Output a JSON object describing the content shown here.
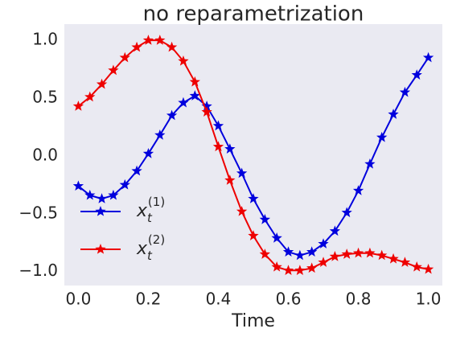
{
  "chart_data": {
    "type": "line",
    "title": "no reparametrization",
    "x_label": "Time",
    "x": [
      0,
      0.033,
      0.067,
      0.1,
      0.133,
      0.167,
      0.2,
      0.233,
      0.267,
      0.3,
      0.333,
      0.367,
      0.4,
      0.433,
      0.467,
      0.5,
      0.533,
      0.567,
      0.6,
      0.633,
      0.667,
      0.7,
      0.733,
      0.767,
      0.8,
      0.833,
      0.867,
      0.9,
      0.933,
      0.967,
      1.0
    ],
    "series": [
      {
        "name": "x",
        "subscript": "t",
        "superscript": "(1)",
        "color": "#0000dd",
        "values": [
          -0.26,
          -0.34,
          -0.37,
          -0.34,
          -0.25,
          -0.13,
          0.02,
          0.18,
          0.35,
          0.46,
          0.52,
          0.43,
          0.26,
          0.06,
          -0.15,
          -0.37,
          -0.55,
          -0.71,
          -0.83,
          -0.86,
          -0.83,
          -0.76,
          -0.65,
          -0.49,
          -0.3,
          -0.07,
          0.16,
          0.36,
          0.55,
          0.7,
          0.85
        ]
      },
      {
        "name": "x",
        "subscript": "t",
        "superscript": "(2)",
        "color": "#ee0000",
        "values": [
          0.43,
          0.51,
          0.62,
          0.74,
          0.85,
          0.94,
          1.0,
          1.0,
          0.94,
          0.82,
          0.64,
          0.38,
          0.08,
          -0.21,
          -0.48,
          -0.69,
          -0.85,
          -0.96,
          -0.99,
          -0.99,
          -0.97,
          -0.92,
          -0.87,
          -0.85,
          -0.84,
          -0.84,
          -0.86,
          -0.89,
          -0.92,
          -0.96,
          -0.98
        ]
      }
    ],
    "xlim": [
      -0.04,
      1.04
    ],
    "ylim": [
      -1.12,
      1.14
    ],
    "xticks": [
      {
        "value": 0,
        "label": "0.0"
      },
      0.2,
      0.4,
      0.6,
      0.8,
      {
        "value": 1,
        "label": "1.0"
      }
    ],
    "yticks": [
      {
        "value": -1,
        "label": "−1.0"
      },
      {
        "value": -0.5,
        "label": "−0.5"
      },
      {
        "value": 0,
        "label": "0.0"
      },
      0.5,
      {
        "value": 1,
        "label": "1.0"
      }
    ],
    "grid": false,
    "legend": "center left"
  }
}
